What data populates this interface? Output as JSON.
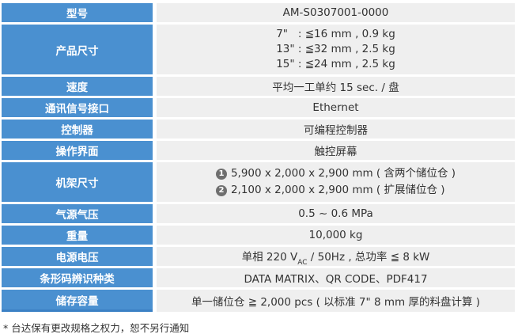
{
  "colors": {
    "header_blue": "#4a90d0",
    "value_bg": "#efefef",
    "badge_gray": "#6f6f6f",
    "text_dark": "#333333",
    "label_text": "#ffffff"
  },
  "table": {
    "rows": [
      {
        "label": "型号",
        "value": "AM-S0307001-0000"
      },
      {
        "label": "产品尺寸",
        "lines": [
          "7\"   : ≦16 mm , 0.9 kg",
          "13\" : ≦32 mm , 2.5 kg",
          "15\" : ≦24 mm , 2.5 kg"
        ]
      },
      {
        "label": "速度",
        "value": "平均一工单约 15 sec. / 盘"
      },
      {
        "label": "通讯信号接口",
        "value": "Ethernet"
      },
      {
        "label": "控制器",
        "value": "可编程控制器"
      },
      {
        "label": "操作界面",
        "value": "触控屏幕"
      },
      {
        "label": "机架尺寸",
        "items": [
          {
            "badge": "1",
            "text": "5,900 x 2,000 x 2,900 mm ( 含两个储位仓 )"
          },
          {
            "badge": "2",
            "text": "2,100 x 2,000 x 2,900 mm ( 扩展储位仓 )"
          }
        ]
      },
      {
        "label": "气源气压",
        "value": "0.5 ~ 0.6 MPa"
      },
      {
        "label": "重量",
        "value": "10,000 kg"
      },
      {
        "label": "电源电压",
        "value_parts": {
          "pre": "单相 220 V",
          "sub": "AC",
          "post": " / 50Hz , 总功率 ≦ 8 kW"
        }
      },
      {
        "label": "条形码辨识种类",
        "value": "DATA MATRIX、QR CODE、PDF417"
      },
      {
        "label": "储存容量",
        "value": "单一储位仓 ≧ 2,000 pcs ( 以标准 7\" 8 mm 厚的料盘计算 )"
      }
    ]
  },
  "footnote": "* 台达保有更改规格之权力，恕不另行通知"
}
